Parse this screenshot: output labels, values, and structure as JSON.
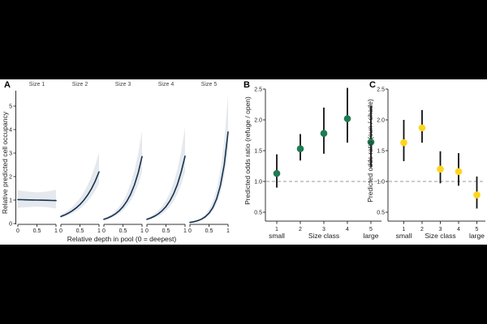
{
  "figure": {
    "description": "Three-panel statistical figure",
    "background": "#ffffff",
    "letterbox_color": "#000000"
  },
  "colors": {
    "fit_line": "#16324f",
    "ribbon": "#e5e9ee",
    "reference_dash": "#9a9a9a",
    "errorbar": "#111111",
    "panel_b_point": "#1e7c51",
    "panel_c_point": "#ffd41c",
    "axis": "#333333"
  },
  "chart_data": [
    {
      "id": "A",
      "type": "line",
      "panel_label": "A",
      "xlabel": "Relative depth in pool (0 = deepest)",
      "ylabel": "Relative predicted cell occupancy",
      "ylim": [
        0,
        5.8
      ],
      "yticks": [
        0,
        1,
        2,
        3,
        4,
        5
      ],
      "ytick_labels": [
        "0",
        "1",
        "2",
        "3",
        "4",
        "5"
      ],
      "x": [
        0,
        0.1,
        0.2,
        0.3,
        0.4,
        0.5,
        0.6,
        0.7,
        0.8,
        0.9,
        1
      ],
      "xticks": [
        0,
        0.5,
        1
      ],
      "xtick_labels": [
        "0",
        "0.5",
        "1"
      ],
      "grid": false,
      "facets": [
        {
          "label": "Size 1",
          "fit": [
            1.02,
            1.016,
            1.012,
            1.008,
            1.004,
            1.0,
            0.996,
            0.992,
            0.988,
            0.984,
            0.98
          ],
          "lower": [
            0.66,
            0.678,
            0.693,
            0.705,
            0.714,
            0.72,
            0.714,
            0.703,
            0.688,
            0.667,
            0.64
          ],
          "upper": [
            1.42,
            1.395,
            1.375,
            1.36,
            1.345,
            1.33,
            1.34,
            1.355,
            1.375,
            1.405,
            1.44
          ]
        },
        {
          "label": "Size 2",
          "fit": [
            0.3,
            0.366,
            0.447,
            0.545,
            0.665,
            0.812,
            0.991,
            1.21,
            1.477,
            1.803,
            2.2
          ],
          "lower": [
            0.24,
            0.292,
            0.355,
            0.432,
            0.525,
            0.639,
            0.777,
            0.945,
            1.149,
            1.398,
            1.7
          ],
          "upper": [
            0.38,
            0.468,
            0.576,
            0.71,
            0.874,
            1.077,
            1.326,
            1.633,
            2.011,
            2.477,
            3.05
          ]
        },
        {
          "label": "Size 3",
          "fit": [
            0.18,
            0.237,
            0.313,
            0.412,
            0.543,
            0.716,
            0.944,
            1.244,
            1.64,
            2.162,
            2.85
          ],
          "lower": [
            0.14,
            0.184,
            0.243,
            0.32,
            0.421,
            0.555,
            0.731,
            0.963,
            1.268,
            1.67,
            2.2
          ],
          "upper": [
            0.23,
            0.306,
            0.407,
            0.541,
            0.719,
            0.956,
            1.271,
            1.69,
            2.247,
            2.988,
            3.95
          ]
        },
        {
          "label": "Size 4",
          "fit": [
            0.18,
            0.237,
            0.314,
            0.415,
            0.548,
            0.724,
            0.957,
            1.264,
            1.67,
            2.207,
            2.87
          ],
          "lower": [
            0.135,
            0.178,
            0.236,
            0.312,
            0.412,
            0.545,
            0.721,
            0.953,
            1.26,
            1.665,
            2.2
          ],
          "upper": [
            0.235,
            0.313,
            0.416,
            0.554,
            0.737,
            0.981,
            1.306,
            1.738,
            2.313,
            3.078,
            4.1
          ]
        },
        {
          "label": "Size 5",
          "fit": [
            0.05,
            0.077,
            0.119,
            0.184,
            0.285,
            0.44,
            0.68,
            1.052,
            1.626,
            2.513,
            3.9
          ],
          "lower": [
            0.038,
            0.059,
            0.091,
            0.142,
            0.22,
            0.342,
            0.531,
            0.824,
            1.28,
            1.988,
            3.1
          ],
          "upper": [
            0.068,
            0.105,
            0.163,
            0.253,
            0.392,
            0.608,
            0.943,
            1.462,
            2.267,
            3.515,
            5.5
          ]
        }
      ]
    },
    {
      "id": "B",
      "type": "pointrange",
      "panel_label": "B",
      "xlabel": "Size class",
      "ylabel": "Predicted odds ratio (refuge / open)",
      "x_sub_labels": {
        "left": "small",
        "right": "large"
      },
      "categories": [
        "1",
        "2",
        "3",
        "4",
        "5"
      ],
      "ylim": [
        0.4,
        2.6
      ],
      "yticks": [
        0.5,
        1.0,
        1.5,
        2.0,
        2.5
      ],
      "ytick_labels": [
        "0.5",
        "1.0",
        "1.5",
        "2.0",
        "2.5"
      ],
      "reference_line": 1.0,
      "point_color": "#1e7c51",
      "values": [
        1.13,
        1.53,
        1.78,
        2.02,
        1.64
      ],
      "lower": [
        0.9,
        1.34,
        1.45,
        1.63,
        1.23
      ],
      "upper": [
        1.44,
        1.77,
        2.2,
        2.52,
        2.23
      ]
    },
    {
      "id": "C",
      "type": "pointrange",
      "panel_label": "C",
      "xlabel": "Size class",
      "ylabel": "Predicted odds ratio (sun / shade)",
      "x_sub_labels": {
        "left": "small",
        "right": "large"
      },
      "categories": [
        "1",
        "2",
        "3",
        "4",
        "5"
      ],
      "ylim": [
        0.4,
        2.6
      ],
      "yticks": [
        0.5,
        1.0,
        1.5,
        2.0,
        2.5
      ],
      "ytick_labels": [
        "0.5",
        "1.0",
        "1.5",
        "2.0",
        "2.5"
      ],
      "reference_line": 1.0,
      "point_color": "#ffd41c",
      "values": [
        1.63,
        1.87,
        1.2,
        1.16,
        0.78
      ],
      "lower": [
        1.33,
        1.63,
        0.97,
        0.93,
        0.56
      ],
      "upper": [
        2.0,
        2.16,
        1.49,
        1.46,
        1.08
      ]
    }
  ]
}
